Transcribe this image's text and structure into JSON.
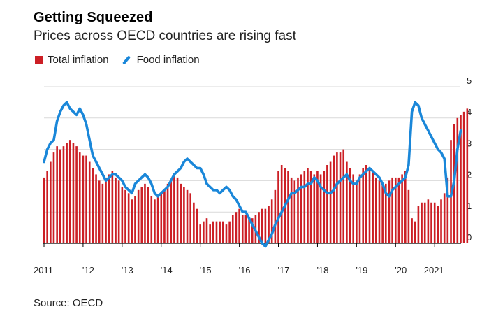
{
  "title": "Getting Squeezed",
  "subtitle": "Prices across OECD countries are rising fast",
  "source": "Source: OECD",
  "colors": {
    "bars": "#cc1f25",
    "line": "#1a87d9",
    "grid": "#d9d9d9",
    "axis": "#000000"
  },
  "chart_data": {
    "type": "bar",
    "legend": {
      "placement": "top-left"
    },
    "series": [
      {
        "name": "Total inflation",
        "type": "bar",
        "start": "2011-01",
        "frequency": "monthly",
        "values": [
          2.1,
          2.3,
          2.6,
          2.9,
          3.1,
          3.0,
          3.1,
          3.2,
          3.3,
          3.2,
          3.1,
          2.9,
          2.8,
          2.8,
          2.6,
          2.4,
          2.2,
          2.0,
          1.9,
          2.1,
          2.2,
          2.3,
          2.1,
          2.0,
          1.8,
          1.7,
          1.6,
          1.4,
          1.5,
          1.7,
          1.8,
          1.9,
          1.8,
          1.5,
          1.4,
          1.5,
          1.6,
          1.7,
          1.9,
          2.0,
          2.2,
          2.1,
          1.9,
          1.8,
          1.7,
          1.6,
          1.3,
          1.1,
          0.6,
          0.7,
          0.8,
          0.6,
          0.7,
          0.7,
          0.7,
          0.7,
          0.6,
          0.7,
          0.9,
          1.0,
          1.1,
          0.9,
          0.9,
          0.8,
          0.8,
          0.9,
          1.0,
          1.1,
          1.1,
          1.2,
          1.4,
          1.7,
          2.3,
          2.5,
          2.4,
          2.3,
          2.1,
          2.0,
          2.1,
          2.2,
          2.3,
          2.4,
          2.3,
          2.2,
          2.3,
          2.2,
          2.3,
          2.5,
          2.6,
          2.8,
          2.9,
          2.9,
          3.0,
          2.6,
          2.4,
          2.2,
          2.0,
          2.2,
          2.4,
          2.5,
          2.4,
          2.3,
          2.1,
          2.0,
          1.9,
          1.9,
          2.0,
          2.1,
          2.1,
          2.1,
          2.2,
          2.3,
          1.7,
          0.8,
          0.7,
          1.2,
          1.3,
          1.3,
          1.4,
          1.3,
          1.3,
          1.2,
          1.4,
          1.6,
          2.1,
          3.3,
          3.8,
          4.0,
          4.1,
          4.2,
          4.3
        ],
        "last_value": 4.3
      },
      {
        "name": "Food inflation",
        "type": "line",
        "start": "2011-01",
        "frequency": "monthly",
        "values": [
          2.6,
          3.0,
          3.2,
          3.3,
          3.9,
          4.2,
          4.4,
          4.5,
          4.3,
          4.2,
          4.1,
          4.3,
          4.1,
          3.8,
          3.3,
          2.8,
          2.6,
          2.4,
          2.2,
          2.0,
          2.1,
          2.2,
          2.2,
          2.1,
          2.0,
          1.8,
          1.7,
          1.6,
          1.9,
          2.0,
          2.1,
          2.2,
          2.1,
          1.9,
          1.6,
          1.5,
          1.6,
          1.7,
          1.8,
          2.0,
          2.2,
          2.3,
          2.4,
          2.6,
          2.7,
          2.6,
          2.5,
          2.4,
          2.4,
          2.2,
          1.9,
          1.8,
          1.7,
          1.7,
          1.6,
          1.7,
          1.8,
          1.7,
          1.5,
          1.4,
          1.2,
          1.0,
          1.0,
          0.8,
          0.6,
          0.4,
          0.2,
          0.0,
          -0.1,
          0.1,
          0.3,
          0.6,
          0.8,
          1.0,
          1.2,
          1.4,
          1.6,
          1.6,
          1.7,
          1.8,
          1.8,
          1.9,
          1.9,
          2.1,
          2.0,
          1.8,
          1.7,
          1.6,
          1.6,
          1.7,
          1.9,
          2.0,
          2.1,
          2.2,
          2.0,
          1.9,
          1.9,
          2.1,
          2.2,
          2.3,
          2.4,
          2.3,
          2.2,
          2.1,
          1.9,
          1.6,
          1.5,
          1.7,
          1.8,
          1.9,
          2.0,
          2.1,
          2.5,
          4.2,
          4.5,
          4.4,
          4.0,
          3.8,
          3.6,
          3.4,
          3.2,
          3.0,
          2.9,
          2.7,
          1.5,
          1.5,
          2.0,
          3.0,
          3.6
        ],
        "last_value": 3.6
      }
    ],
    "x": {
      "labels": [
        "2011",
        "'12",
        "'13",
        "'14",
        "'15",
        "'16",
        "'17",
        "'18",
        "'19",
        "'20",
        "2021"
      ]
    },
    "y": {
      "labels": [
        "5",
        "4",
        "3",
        "2",
        "1",
        "0"
      ],
      "range": [
        -0.2,
        5
      ]
    },
    "grid": true,
    "y_axis_side": "right"
  }
}
